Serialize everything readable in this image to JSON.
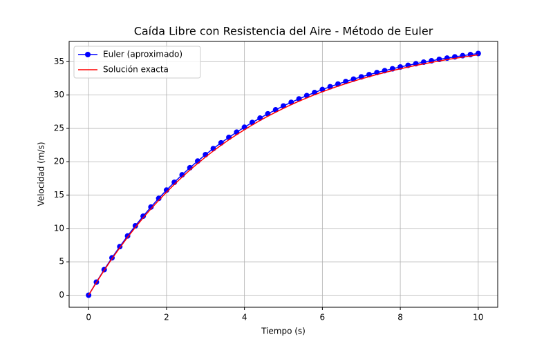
{
  "chart_data": {
    "type": "line",
    "title": "Caída Libre con Resistencia del Aire - Método de Euler",
    "xlabel": "Tiempo (s)",
    "ylabel": "Velocidad (m/s)",
    "x": [
      0,
      0.2,
      0.4,
      0.6,
      0.8,
      1,
      1.2,
      1.4,
      1.6,
      1.8,
      2,
      2.2,
      2.4,
      2.6,
      2.8,
      3,
      3.2,
      3.4,
      3.6,
      3.8,
      4,
      4.2,
      4.4,
      4.6,
      4.8,
      5,
      5.2,
      5.4,
      5.6,
      5.8,
      6,
      6.2,
      6.4,
      6.6,
      6.8,
      7,
      7.2,
      7.4,
      7.6,
      7.8,
      8,
      8.2,
      8.4,
      8.6,
      8.8,
      9,
      9.2,
      9.4,
      9.6,
      9.8,
      10
    ],
    "series": [
      {
        "name": "Euler (aproximado)",
        "color": "#0000ff",
        "marker": true,
        "values": [
          0,
          1.96,
          3.83,
          5.6,
          7.28,
          8.88,
          10.4,
          11.84,
          13.21,
          14.51,
          15.75,
          16.92,
          18.04,
          19.1,
          20.1,
          21.06,
          21.97,
          22.83,
          23.65,
          24.43,
          25.17,
          25.88,
          26.54,
          27.18,
          27.78,
          28.36,
          28.9,
          29.42,
          29.91,
          30.37,
          30.82,
          31.24,
          31.64,
          32.02,
          32.38,
          32.72,
          33.05,
          33.36,
          33.65,
          33.93,
          34.2,
          34.45,
          34.69,
          34.92,
          35.13,
          35.34,
          35.53,
          35.72,
          35.89,
          36.06,
          36.22
        ]
      },
      {
        "name": "Solución exacta",
        "color": "#ff0000",
        "marker": false,
        "values": [
          0,
          1.91,
          3.73,
          5.47,
          7.11,
          8.68,
          10.17,
          11.59,
          12.94,
          14.22,
          15.44,
          16.6,
          17.7,
          18.76,
          19.75,
          20.7,
          21.61,
          22.47,
          23.29,
          24.06,
          24.8,
          25.51,
          26.18,
          26.82,
          27.42,
          28,
          28.55,
          29.07,
          29.56,
          30.04,
          30.48,
          30.91,
          31.32,
          31.7,
          32.07,
          32.42,
          32.75,
          33.07,
          33.37,
          33.66,
          33.93,
          34.19,
          34.43,
          34.67,
          34.89,
          35.1,
          35.31,
          35.5,
          35.68,
          35.85,
          36.02
        ]
      }
    ],
    "xlim": [
      -0.5,
      10.5
    ],
    "xticks": [
      0,
      2,
      4,
      6,
      8,
      10
    ],
    "ylim": [
      -1.81,
      38.03
    ],
    "yticks": [
      0,
      5,
      10,
      15,
      20,
      25,
      30,
      35
    ],
    "grid": true,
    "legend": "upper left"
  }
}
